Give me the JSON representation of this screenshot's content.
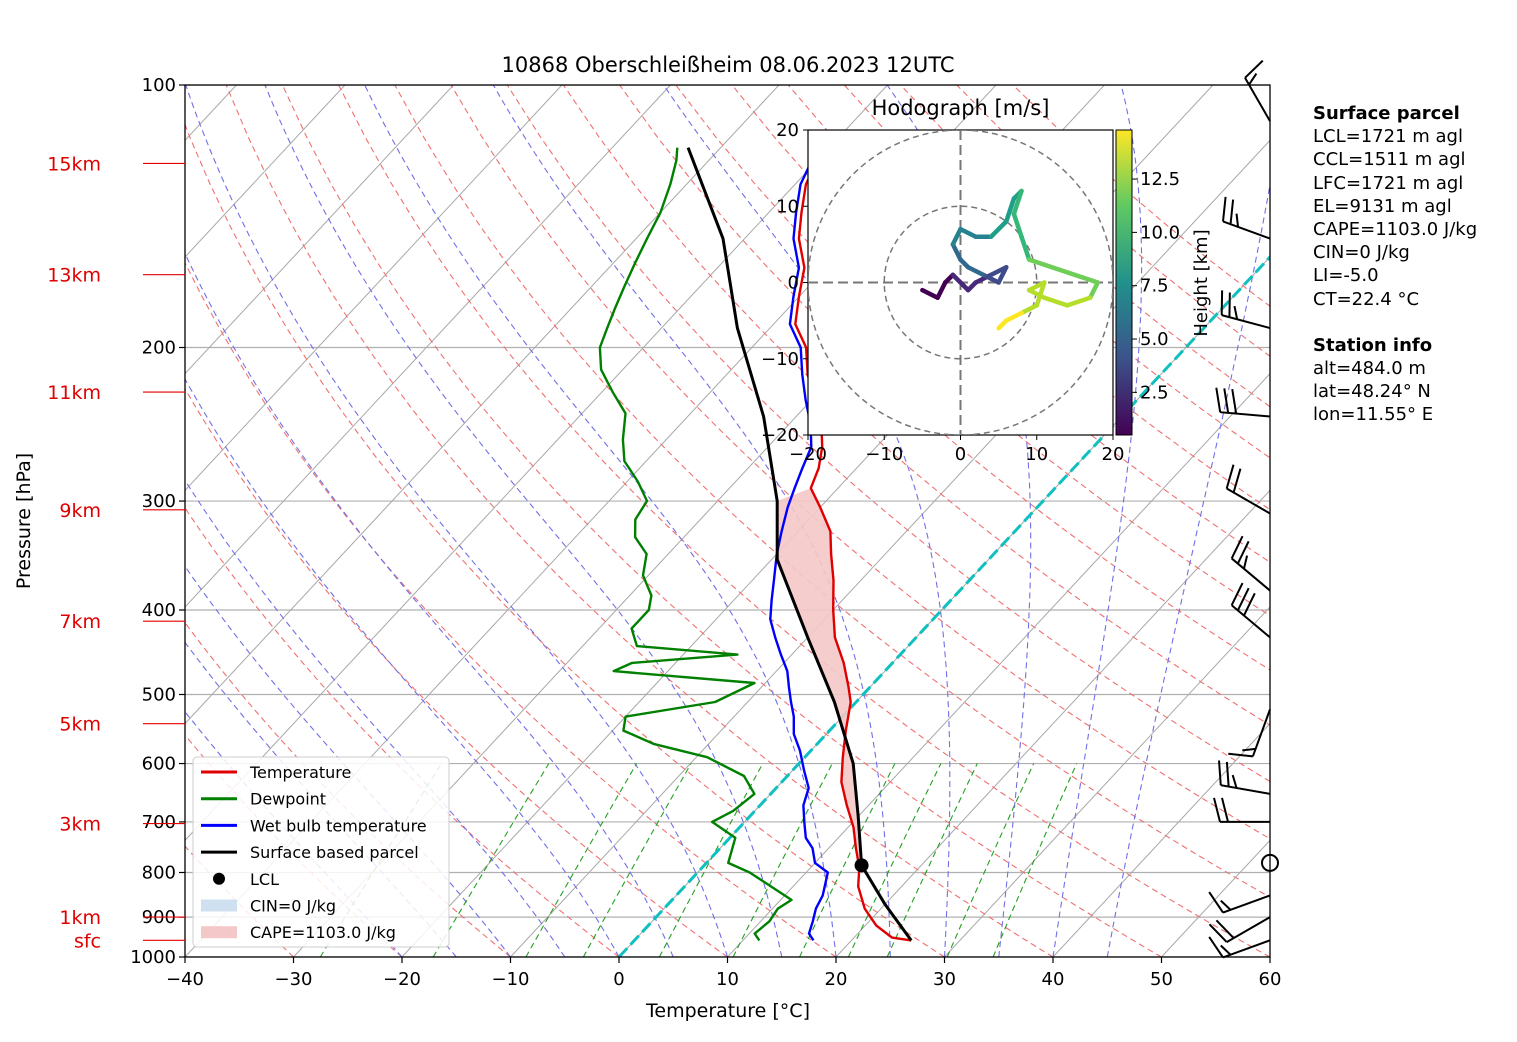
{
  "chart_data": {
    "type": "skew-t log-p diagram with hodograph inset",
    "title": "10868 Oberschleißheim 08.06.2023 12UTC",
    "xlabel": "Temperature [°C]",
    "ylabel": "Pressure [hPa]",
    "xlim": [
      -40,
      60
    ],
    "ylim_hpa": [
      1000,
      100
    ],
    "y_scale": "log",
    "x_ticks": [
      -40,
      -30,
      -20,
      -10,
      0,
      10,
      20,
      30,
      40,
      50,
      60
    ],
    "x_tick_labels": [
      "−40",
      "−30",
      "−20",
      "−10",
      "0",
      "10",
      "20",
      "30",
      "40",
      "50",
      "60"
    ],
    "pressure_ticks": [
      100,
      200,
      300,
      400,
      500,
      600,
      700,
      800,
      900,
      1000
    ],
    "pressure_tick_labels": [
      "100",
      "200",
      "300",
      "400",
      "500",
      "600",
      "700",
      "800",
      "900",
      "1000"
    ],
    "height_marks": [
      {
        "label": "15km",
        "p": 123
      },
      {
        "label": "13km",
        "p": 165
      },
      {
        "label": "11km",
        "p": 225
      },
      {
        "label": "9km",
        "p": 307
      },
      {
        "label": "7km",
        "p": 412
      },
      {
        "label": "5km",
        "p": 540
      },
      {
        "label": "3km",
        "p": 703
      },
      {
        "label": "1km",
        "p": 900
      },
      {
        "label": "sfc",
        "p": 957
      }
    ],
    "series": [
      {
        "name": "Temperature",
        "color": "#e00000",
        "points": [
          [
            25.5,
            957
          ],
          [
            23.5,
            950
          ],
          [
            21,
            920
          ],
          [
            18.5,
            880
          ],
          [
            16,
            830
          ],
          [
            14.5,
            790
          ],
          [
            12.5,
            750
          ],
          [
            10.5,
            710
          ],
          [
            8,
            670
          ],
          [
            5.5,
            630
          ],
          [
            3.5,
            590
          ],
          [
            1.5,
            550
          ],
          [
            -0.5,
            510
          ],
          [
            -2,
            490
          ],
          [
            -4.5,
            460
          ],
          [
            -7.5,
            430
          ],
          [
            -10,
            400
          ],
          [
            -12.5,
            370
          ],
          [
            -15,
            345
          ],
          [
            -17,
            325
          ],
          [
            -20,
            305
          ],
          [
            -22.5,
            290
          ],
          [
            -23.5,
            275
          ],
          [
            -25,
            260
          ],
          [
            -27,
            245
          ],
          [
            -29.5,
            230
          ],
          [
            -32.5,
            215
          ],
          [
            -35,
            200
          ],
          [
            -38,
            188
          ],
          [
            -40,
            175
          ],
          [
            -42,
            162
          ],
          [
            -45,
            150
          ],
          [
            -47,
            140
          ],
          [
            -49,
            130
          ],
          [
            -50,
            122
          ],
          [
            -50.3,
            118
          ]
        ]
      },
      {
        "name": "Dewpoint",
        "color": "#008000",
        "points": [
          [
            11.5,
            957
          ],
          [
            10.5,
            940
          ],
          [
            10.8,
            910
          ],
          [
            10.5,
            880
          ],
          [
            11,
            860
          ],
          [
            4.8,
            800
          ],
          [
            2,
            780
          ],
          [
            0.5,
            730
          ],
          [
            -3,
            700
          ],
          [
            -2,
            680
          ],
          [
            -1.5,
            650
          ],
          [
            -4,
            620
          ],
          [
            -9,
            590
          ],
          [
            -15,
            570
          ],
          [
            -19,
            550
          ],
          [
            -20,
            530
          ],
          [
            -13,
            510
          ],
          [
            -11,
            485
          ],
          [
            -25,
            470
          ],
          [
            -24,
            460
          ],
          [
            -15,
            450
          ],
          [
            -25,
            440
          ],
          [
            -27,
            420
          ],
          [
            -27,
            400
          ],
          [
            -28,
            385
          ],
          [
            -30.5,
            365
          ],
          [
            -32,
            345
          ],
          [
            -34.5,
            330
          ],
          [
            -36,
            315
          ],
          [
            -36.5,
            300
          ],
          [
            -39,
            285
          ],
          [
            -42,
            270
          ],
          [
            -44,
            255
          ],
          [
            -46,
            238
          ],
          [
            -49,
            225
          ],
          [
            -52,
            212
          ],
          [
            -54,
            200
          ],
          [
            -55,
            190
          ],
          [
            -56,
            180
          ],
          [
            -57,
            170
          ],
          [
            -58,
            160
          ],
          [
            -59,
            150
          ],
          [
            -60,
            140
          ],
          [
            -61.5,
            130
          ],
          [
            -63,
            122
          ],
          [
            -64,
            118
          ]
        ]
      },
      {
        "name": "Wet bulb temperature",
        "color": "#0000ff",
        "points": [
          [
            16.5,
            957
          ],
          [
            15.5,
            940
          ],
          [
            14.8,
            910
          ],
          [
            14,
            880
          ],
          [
            13.5,
            850
          ],
          [
            12,
            800
          ],
          [
            10,
            780
          ],
          [
            8.5,
            750
          ],
          [
            7,
            730
          ],
          [
            5.5,
            700
          ],
          [
            4,
            670
          ],
          [
            3,
            640
          ],
          [
            1,
            610
          ],
          [
            -1,
            580
          ],
          [
            -3,
            555
          ],
          [
            -4.5,
            530
          ],
          [
            -6,
            510
          ],
          [
            -7.5,
            490
          ],
          [
            -9,
            470
          ],
          [
            -11,
            450
          ],
          [
            -13,
            430
          ],
          [
            -15,
            410
          ],
          [
            -16.5,
            390
          ],
          [
            -18,
            370
          ],
          [
            -20,
            345
          ],
          [
            -21.5,
            325
          ],
          [
            -23,
            305
          ],
          [
            -24,
            290
          ],
          [
            -25,
            275
          ],
          [
            -26,
            260
          ],
          [
            -28,
            245
          ],
          [
            -30.5,
            230
          ],
          [
            -33,
            215
          ],
          [
            -35.5,
            200
          ],
          [
            -38.5,
            188
          ],
          [
            -40.5,
            175
          ],
          [
            -42.5,
            162
          ],
          [
            -45.5,
            150
          ],
          [
            -47.5,
            140
          ],
          [
            -49.5,
            130
          ],
          [
            -50.5,
            122
          ],
          [
            -50.8,
            118
          ]
        ]
      },
      {
        "name": "Surface based parcel",
        "color": "#000000",
        "points": [
          [
            25.5,
            957
          ],
          [
            20,
            870
          ],
          [
            14.5,
            785
          ],
          [
            10,
            690
          ],
          [
            5,
            600
          ],
          [
            -2,
            510
          ],
          [
            -10,
            430
          ],
          [
            -19.5,
            350
          ],
          [
            -24.5,
            300
          ],
          [
            -33,
            240
          ],
          [
            -43,
            190
          ],
          [
            -52,
            150
          ],
          [
            -63,
            118
          ]
        ]
      }
    ],
    "lcl": {
      "label": "LCL",
      "t": 14.5,
      "p": 785
    },
    "cin_label": "CIN=0 J/kg",
    "cape_label": "CAPE=1103.0 J/kg",
    "cape_area_fill": "#f4c8c8",
    "cin_area_fill": "#cfe0f0",
    "freezing_level_line": "cyan dashed 0 °C isotherm",
    "wind_barbs": [
      {
        "p": 957,
        "dir_deg": 250,
        "speed_kt": 15
      },
      {
        "p": 900,
        "dir_deg": 240,
        "speed_kt": 20
      },
      {
        "p": 850,
        "dir_deg": 250,
        "speed_kt": 15
      },
      {
        "p": 780,
        "dir_deg": 0,
        "speed_kt": 0
      },
      {
        "p": 700,
        "dir_deg": 270,
        "speed_kt": 20
      },
      {
        "p": 650,
        "dir_deg": 280,
        "speed_kt": 25
      },
      {
        "p": 520,
        "dir_deg": 200,
        "speed_kt": 15
      },
      {
        "p": 430,
        "dir_deg": 310,
        "speed_kt": 30
      },
      {
        "p": 380,
        "dir_deg": 310,
        "speed_kt": 25
      },
      {
        "p": 310,
        "dir_deg": 300,
        "speed_kt": 20
      },
      {
        "p": 240,
        "dir_deg": 275,
        "speed_kt": 30
      },
      {
        "p": 190,
        "dir_deg": 285,
        "speed_kt": 25
      },
      {
        "p": 150,
        "dir_deg": 290,
        "speed_kt": 25
      },
      {
        "p": 110,
        "dir_deg": 330,
        "speed_kt": 15
      }
    ],
    "hodograph": {
      "title": "Hodograph [m/s]",
      "xlim": [
        -20,
        20
      ],
      "ylim": [
        -20,
        20
      ],
      "ticks": [
        -20,
        -10,
        0,
        10,
        20
      ],
      "tick_labels": [
        "−20",
        "−10",
        "0",
        "10",
        "20"
      ],
      "rings_ms": [
        10,
        20
      ],
      "colorbar_label": "Height [km]",
      "colorbar_ticks": [
        2.5,
        5.0,
        7.5,
        10.0,
        12.5
      ],
      "colorbar_tick_labels": [
        "2.5",
        "5.0",
        "7.5",
        "10.0",
        "12.5"
      ],
      "colorbar_range_km": [
        0.5,
        14.8
      ],
      "colormap": "viridis",
      "points": [
        [
          -5,
          -1,
          0.5
        ],
        [
          -3,
          -2,
          1.0
        ],
        [
          -2,
          0,
          1.5
        ],
        [
          -1,
          1,
          2.0
        ],
        [
          1,
          -1,
          2.5
        ],
        [
          2,
          0,
          3.0
        ],
        [
          4,
          1,
          3.5
        ],
        [
          6,
          2,
          4.0
        ],
        [
          5,
          0,
          4.5
        ],
        [
          3,
          1,
          5.0
        ],
        [
          1,
          2,
          5.5
        ],
        [
          0,
          3,
          6.0
        ],
        [
          -1,
          5,
          6.5
        ],
        [
          0,
          7,
          7.0
        ],
        [
          2,
          6,
          7.5
        ],
        [
          4,
          6,
          8.0
        ],
        [
          6,
          8,
          8.5
        ],
        [
          7,
          11,
          9.0
        ],
        [
          8,
          12,
          9.5
        ],
        [
          7,
          9,
          10.0
        ],
        [
          8,
          6,
          10.5
        ],
        [
          9,
          3,
          11.0
        ],
        [
          12,
          2,
          11.3
        ],
        [
          15,
          1,
          11.6
        ],
        [
          18,
          0,
          11.9
        ],
        [
          17,
          -2,
          12.1
        ],
        [
          14,
          -3,
          12.3
        ],
        [
          11,
          -2,
          12.5
        ],
        [
          9,
          -1,
          12.7
        ],
        [
          11,
          0,
          12.9
        ],
        [
          10,
          -3,
          13.2
        ],
        [
          8,
          -4,
          13.6
        ],
        [
          6,
          -5,
          14.0
        ],
        [
          5,
          -6,
          14.4
        ]
      ]
    }
  },
  "legend": {
    "placement": "lower-left",
    "items": [
      {
        "label": "Temperature",
        "color": "#e00000",
        "kind": "line"
      },
      {
        "label": "Dewpoint",
        "color": "#008000",
        "kind": "line"
      },
      {
        "label": "Wet bulb temperature",
        "color": "#0000ff",
        "kind": "line"
      },
      {
        "label": "Surface based parcel",
        "color": "#000000",
        "kind": "line"
      },
      {
        "label": "LCL",
        "color": "#000000",
        "kind": "dot"
      },
      {
        "label": "CIN=0 J/kg",
        "color": "#cfe0f0",
        "kind": "patch"
      },
      {
        "label": "CAPE=1103.0 J/kg",
        "color": "#f4c8c8",
        "kind": "patch"
      }
    ]
  },
  "info": {
    "surface_header": "Surface parcel",
    "surface_lines": [
      "LCL=1721 m agl",
      "CCL=1511 m agl",
      "LFC=1721 m agl",
      "EL=9131 m agl",
      "CAPE=1103.0 J/kg",
      "CIN=0 J/kg",
      "LI=-5.0",
      "CT=22.4 °C"
    ],
    "station_header": "Station info",
    "station_lines": [
      "alt=484.0 m",
      "lat=48.24° N",
      "lon=11.55° E"
    ]
  }
}
